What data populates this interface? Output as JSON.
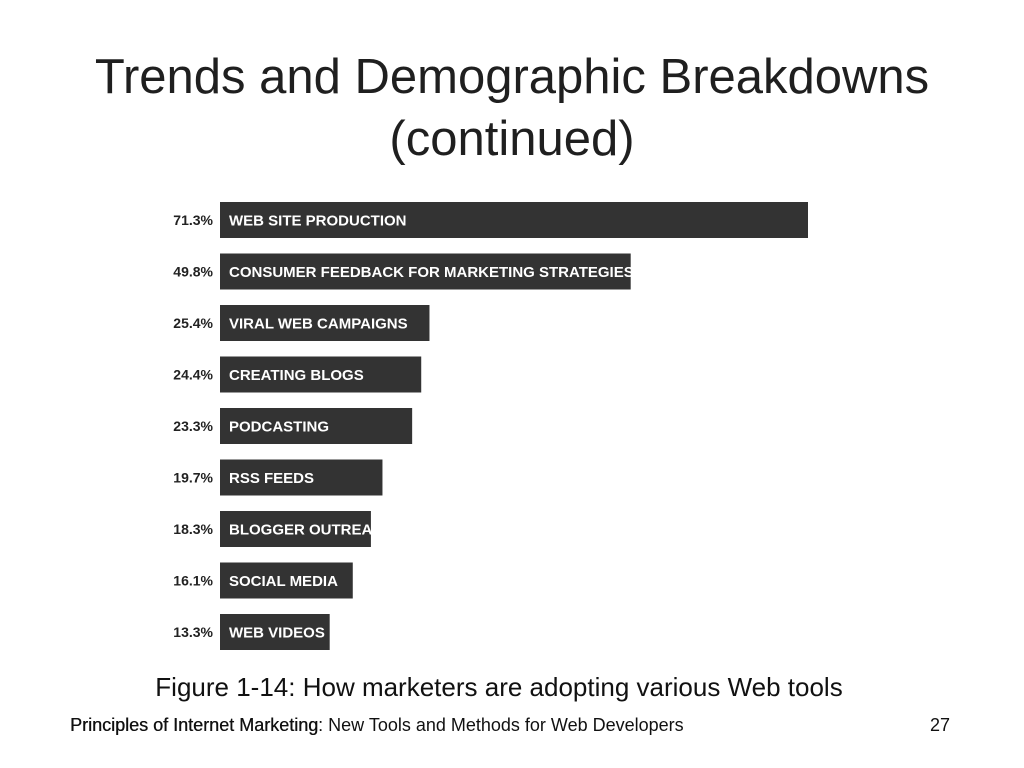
{
  "slide": {
    "title_line1": "Trends and Demographic Breakdowns",
    "title_line2": "(continued)"
  },
  "caption": "Figure 1-14: How marketers are adopting various Web tools",
  "footer": {
    "title_main": "Principles of Internet Marketing",
    "title_sep": ":",
    "title_sub": " New Tools and Methods for Web Developers",
    "page_number": "27"
  },
  "colors": {
    "bar": "#333333",
    "bar_label": "#ffffff",
    "value_label": "#222222"
  },
  "chart_data": {
    "type": "bar",
    "orientation": "horizontal",
    "title": "",
    "xlabel": "",
    "ylabel": "",
    "xlim": [
      0,
      71.3
    ],
    "grid": false,
    "legend": "none",
    "categories": [
      "WEB SITE PRODUCTION",
      "CONSUMER FEEDBACK FOR MARKETING STRATEGIES",
      "VIRAL WEB CAMPAIGNS",
      "CREATING BLOGS",
      "PODCASTING",
      "RSS FEEDS",
      "BLOGGER OUTREACH",
      "SOCIAL MEDIA",
      "WEB VIDEOS"
    ],
    "values": [
      71.3,
      49.8,
      25.4,
      24.4,
      23.3,
      19.7,
      18.3,
      16.1,
      13.3
    ],
    "value_labels": [
      "71.3%",
      "49.8%",
      "25.4%",
      "24.4%",
      "23.3%",
      "19.7%",
      "18.3%",
      "16.1%",
      "13.3%"
    ]
  }
}
